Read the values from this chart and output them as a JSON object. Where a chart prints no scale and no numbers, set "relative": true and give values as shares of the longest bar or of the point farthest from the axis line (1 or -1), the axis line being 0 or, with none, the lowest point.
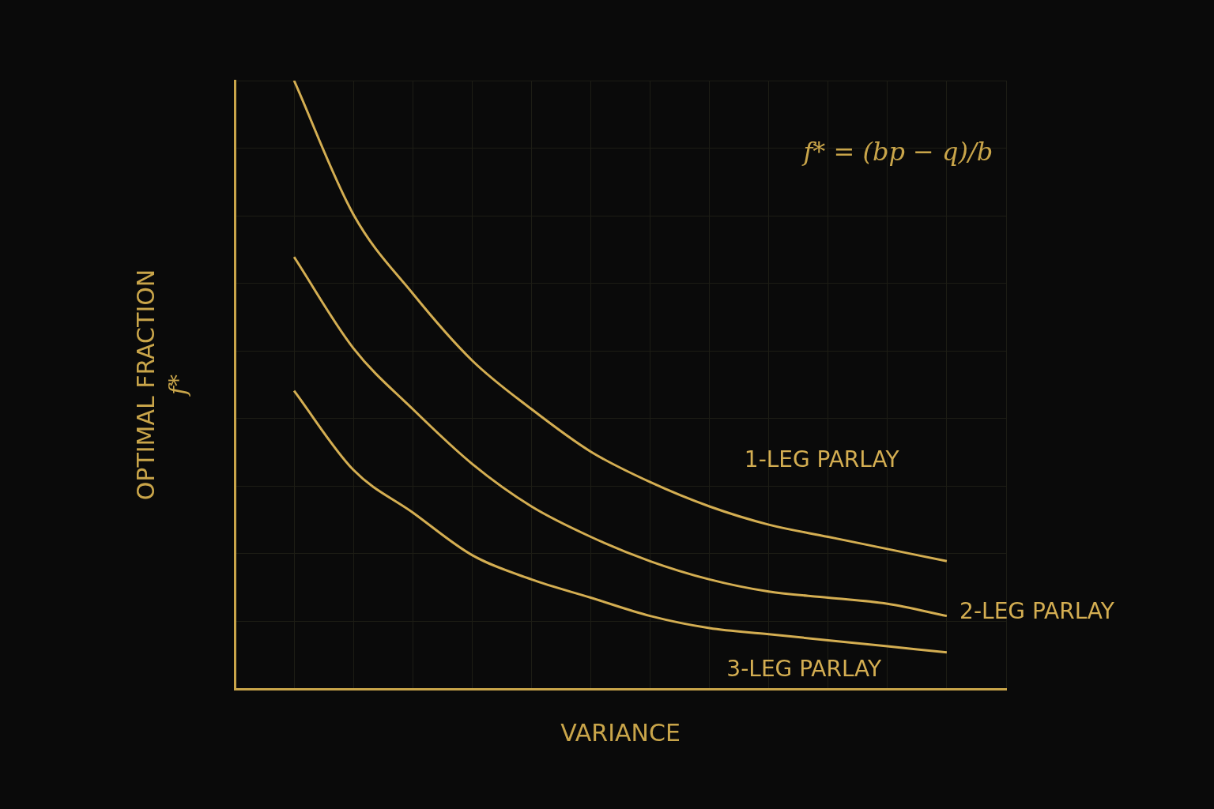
{
  "chart_data": {
    "type": "line",
    "relative": true,
    "xlabel": "VARIANCE",
    "ylabel": "OPTIMAL FRACTION\nf*",
    "annotations": [
      "f* = (bp − q)/b"
    ],
    "categories": [
      null,
      null,
      null,
      null,
      null,
      null,
      null,
      null,
      null,
      null,
      null,
      null,
      null,
      null
    ],
    "series": [
      {
        "name": "1-LEG PARLAY",
        "color": "#d4ae52",
        "values": [
          null,
          1,
          0.78,
          0.65,
          0.54,
          0.46,
          0.39,
          0.34,
          0.3,
          0.27,
          0.25,
          0.23,
          0.21,
          null
        ]
      },
      {
        "name": "2-LEG PARLAY",
        "color": "#d4ae52",
        "values": [
          null,
          0.71,
          0.56,
          0.46,
          0.37,
          0.3,
          0.25,
          0.21,
          0.18,
          0.16,
          0.15,
          0.14,
          0.12,
          null
        ]
      },
      {
        "name": "3-LEG PARLAY",
        "color": "#d4ae52",
        "values": [
          null,
          0.49,
          0.36,
          0.29,
          0.22,
          0.18,
          0.15,
          0.12,
          0.1,
          0.09,
          0.08,
          0.07,
          0.06,
          null
        ]
      }
    ],
    "grid": true,
    "legend": false,
    "marker": "none",
    "line_style": "solid"
  }
}
